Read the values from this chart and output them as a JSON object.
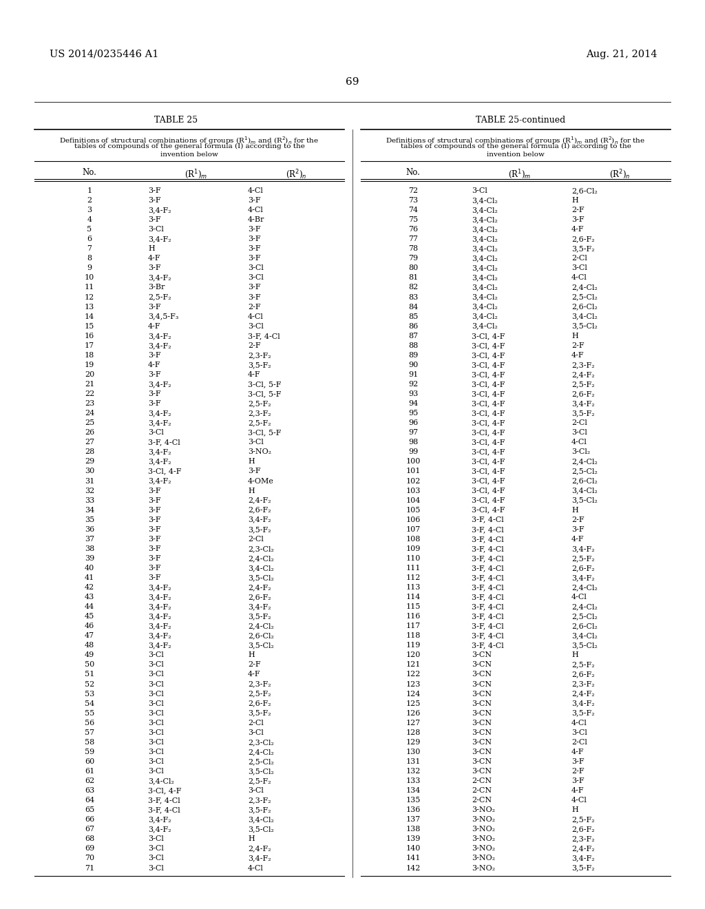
{
  "header_left": "US 2014/0235446 A1",
  "header_right": "Aug. 21, 2014",
  "page_number": "69",
  "table_title_left": "TABLE 25",
  "table_title_right": "TABLE 25-continued",
  "left_data": [
    [
      "1",
      "3-F",
      "4-Cl"
    ],
    [
      "2",
      "3-F",
      "3-F"
    ],
    [
      "3",
      "3,4-F₂",
      "4-Cl"
    ],
    [
      "4",
      "3-F",
      "4-Br"
    ],
    [
      "5",
      "3-Cl",
      "3-F"
    ],
    [
      "6",
      "3,4-F₂",
      "3-F"
    ],
    [
      "7",
      "H",
      "3-F"
    ],
    [
      "8",
      "4-F",
      "3-F"
    ],
    [
      "9",
      "3-F",
      "3-Cl"
    ],
    [
      "10",
      "3,4-F₂",
      "3-Cl"
    ],
    [
      "11",
      "3-Br",
      "3-F"
    ],
    [
      "12",
      "2,5-F₂",
      "3-F"
    ],
    [
      "13",
      "3-F",
      "2-F"
    ],
    [
      "14",
      "3,4,5-F₃",
      "4-Cl"
    ],
    [
      "15",
      "4-F",
      "3-Cl"
    ],
    [
      "16",
      "3,4-F₂",
      "3-F, 4-Cl"
    ],
    [
      "17",
      "3,4-F₂",
      "2-F"
    ],
    [
      "18",
      "3-F",
      "2,3-F₂"
    ],
    [
      "19",
      "4-F",
      "3,5-F₂"
    ],
    [
      "20",
      "3-F",
      "4-F"
    ],
    [
      "21",
      "3,4-F₂",
      "3-Cl, 5-F"
    ],
    [
      "22",
      "3-F",
      "3-Cl, 5-F"
    ],
    [
      "23",
      "3-F",
      "2,5-F₂"
    ],
    [
      "24",
      "3,4-F₂",
      "2,3-F₂"
    ],
    [
      "25",
      "3,4-F₂",
      "2,5-F₂"
    ],
    [
      "26",
      "3-Cl",
      "3-Cl, 5-F"
    ],
    [
      "27",
      "3-F, 4-Cl",
      "3-Cl"
    ],
    [
      "28",
      "3,4-F₂",
      "3-NO₂"
    ],
    [
      "29",
      "3,4-F₂",
      "H"
    ],
    [
      "30",
      "3-Cl, 4-F",
      "3-F"
    ],
    [
      "31",
      "3,4-F₂",
      "4-OMe"
    ],
    [
      "32",
      "3-F",
      "H"
    ],
    [
      "33",
      "3-F",
      "2,4-F₂"
    ],
    [
      "34",
      "3-F",
      "2,6-F₂"
    ],
    [
      "35",
      "3-F",
      "3,4-F₂"
    ],
    [
      "36",
      "3-F",
      "3,5-F₂"
    ],
    [
      "37",
      "3-F",
      "2-Cl"
    ],
    [
      "38",
      "3-F",
      "2,3-Cl₂"
    ],
    [
      "39",
      "3-F",
      "2,4-Cl₂"
    ],
    [
      "40",
      "3-F",
      "3,4-Cl₂"
    ],
    [
      "41",
      "3-F",
      "3,5-Cl₂"
    ],
    [
      "42",
      "3,4-F₂",
      "2,4-F₂"
    ],
    [
      "43",
      "3,4-F₂",
      "2,6-F₂"
    ],
    [
      "44",
      "3,4-F₂",
      "3,4-F₂"
    ],
    [
      "45",
      "3,4-F₂",
      "3,5-F₂"
    ],
    [
      "46",
      "3,4-F₂",
      "2,4-Cl₂"
    ],
    [
      "47",
      "3,4-F₂",
      "2,6-Cl₂"
    ],
    [
      "48",
      "3,4-F₂",
      "3,5-Cl₂"
    ],
    [
      "49",
      "3-Cl",
      "H"
    ],
    [
      "50",
      "3-Cl",
      "2-F"
    ],
    [
      "51",
      "3-Cl",
      "4-F"
    ],
    [
      "52",
      "3-Cl",
      "2,3-F₂"
    ],
    [
      "53",
      "3-Cl",
      "2,5-F₂"
    ],
    [
      "54",
      "3-Cl",
      "2,6-F₂"
    ],
    [
      "55",
      "3-Cl",
      "3,5-F₂"
    ],
    [
      "56",
      "3-Cl",
      "2-Cl"
    ],
    [
      "57",
      "3-Cl",
      "3-Cl"
    ],
    [
      "58",
      "3-Cl",
      "2,3-Cl₂"
    ],
    [
      "59",
      "3-Cl",
      "2,4-Cl₂"
    ],
    [
      "60",
      "3-Cl",
      "2,5-Cl₂"
    ],
    [
      "61",
      "3-Cl",
      "3,5-Cl₂"
    ],
    [
      "62",
      "3,4-Cl₂",
      "2,5-F₂"
    ],
    [
      "63",
      "3-Cl, 4-F",
      "3-Cl"
    ],
    [
      "64",
      "3-F, 4-Cl",
      "2,3-F₂"
    ],
    [
      "65",
      "3-F, 4-Cl",
      "3,5-F₂"
    ],
    [
      "66",
      "3,4-F₂",
      "3,4-Cl₂"
    ],
    [
      "67",
      "3,4-F₂",
      "3,5-Cl₂"
    ],
    [
      "68",
      "3-Cl",
      "H"
    ],
    [
      "69",
      "3-Cl",
      "2,4-F₂"
    ],
    [
      "70",
      "3-Cl",
      "3,4-F₂"
    ],
    [
      "71",
      "3-Cl",
      "4-Cl"
    ]
  ],
  "right_data": [
    [
      "72",
      "3-Cl",
      "2,6-Cl₂"
    ],
    [
      "73",
      "3,4-Cl₂",
      "H"
    ],
    [
      "74",
      "3,4-Cl₂",
      "2-F"
    ],
    [
      "75",
      "3,4-Cl₂",
      "3-F"
    ],
    [
      "76",
      "3,4-Cl₂",
      "4-F"
    ],
    [
      "77",
      "3,4-Cl₂",
      "2,6-F₂"
    ],
    [
      "78",
      "3,4-Cl₂",
      "3,5-F₂"
    ],
    [
      "79",
      "3,4-Cl₂",
      "2-Cl"
    ],
    [
      "80",
      "3,4-Cl₂",
      "3-Cl"
    ],
    [
      "81",
      "3,4-Cl₂",
      "4-Cl"
    ],
    [
      "82",
      "3,4-Cl₂",
      "2,4-Cl₂"
    ],
    [
      "83",
      "3,4-Cl₂",
      "2,5-Cl₂"
    ],
    [
      "84",
      "3,4-Cl₂",
      "2,6-Cl₂"
    ],
    [
      "85",
      "3,4-Cl₂",
      "3,4-Cl₂"
    ],
    [
      "86",
      "3,4-Cl₂",
      "3,5-Cl₂"
    ],
    [
      "87",
      "3-Cl, 4-F",
      "H"
    ],
    [
      "88",
      "3-Cl, 4-F",
      "2-F"
    ],
    [
      "89",
      "3-Cl, 4-F",
      "4-F"
    ],
    [
      "90",
      "3-Cl, 4-F",
      "2,3-F₂"
    ],
    [
      "91",
      "3-Cl, 4-F",
      "2,4-F₂"
    ],
    [
      "92",
      "3-Cl, 4-F",
      "2,5-F₂"
    ],
    [
      "93",
      "3-Cl, 4-F",
      "2,6-F₂"
    ],
    [
      "94",
      "3-Cl, 4-F",
      "3,4-F₂"
    ],
    [
      "95",
      "3-Cl, 4-F",
      "3,5-F₂"
    ],
    [
      "96",
      "3-Cl, 4-F",
      "2-Cl"
    ],
    [
      "97",
      "3-Cl, 4-F",
      "3-Cl"
    ],
    [
      "98",
      "3-Cl, 4-F",
      "4-Cl"
    ],
    [
      "99",
      "3-Cl, 4-F",
      "3-Cl₂"
    ],
    [
      "100",
      "3-Cl, 4-F",
      "2,4-Cl₂"
    ],
    [
      "101",
      "3-Cl, 4-F",
      "2,5-Cl₂"
    ],
    [
      "102",
      "3-Cl, 4-F",
      "2,6-Cl₂"
    ],
    [
      "103",
      "3-Cl, 4-F",
      "3,4-Cl₂"
    ],
    [
      "104",
      "3-Cl, 4-F",
      "3,5-Cl₂"
    ],
    [
      "105",
      "3-Cl, 4-F",
      "H"
    ],
    [
      "106",
      "3-F, 4-Cl",
      "2-F"
    ],
    [
      "107",
      "3-F, 4-Cl",
      "3-F"
    ],
    [
      "108",
      "3-F, 4-Cl",
      "4-F"
    ],
    [
      "109",
      "3-F, 4-Cl",
      "3,4-F₂"
    ],
    [
      "110",
      "3-F, 4-Cl",
      "2,5-F₂"
    ],
    [
      "111",
      "3-F, 4-Cl",
      "2,6-F₂"
    ],
    [
      "112",
      "3-F, 4-Cl",
      "3,4-F₂"
    ],
    [
      "113",
      "3-F, 4-Cl",
      "2,4-Cl₂"
    ],
    [
      "114",
      "3-F, 4-Cl",
      "4-Cl"
    ],
    [
      "115",
      "3-F, 4-Cl",
      "2,4-Cl₂"
    ],
    [
      "116",
      "3-F, 4-Cl",
      "2,5-Cl₂"
    ],
    [
      "117",
      "3-F, 4-Cl",
      "2,6-Cl₂"
    ],
    [
      "118",
      "3-F, 4-Cl",
      "3,4-Cl₂"
    ],
    [
      "119",
      "3-F, 4-Cl",
      "3,5-Cl₂"
    ],
    [
      "120",
      "3-CN",
      "H"
    ],
    [
      "121",
      "3-CN",
      "2,5-F₂"
    ],
    [
      "122",
      "3-CN",
      "2,6-F₂"
    ],
    [
      "123",
      "3-CN",
      "2,3-F₂"
    ],
    [
      "124",
      "3-CN",
      "2,4-F₂"
    ],
    [
      "125",
      "3-CN",
      "3,4-F₂"
    ],
    [
      "126",
      "3-CN",
      "3,5-F₂"
    ],
    [
      "127",
      "3-CN",
      "4-Cl"
    ],
    [
      "128",
      "3-CN",
      "3-Cl"
    ],
    [
      "129",
      "3-CN",
      "2-Cl"
    ],
    [
      "130",
      "3-CN",
      "4-F"
    ],
    [
      "131",
      "3-CN",
      "3-F"
    ],
    [
      "132",
      "3-CN",
      "2-F"
    ],
    [
      "133",
      "2-CN",
      "3-F"
    ],
    [
      "134",
      "2-CN",
      "4-F"
    ],
    [
      "135",
      "2-CN",
      "4-Cl"
    ],
    [
      "136",
      "3-NO₂",
      "H"
    ],
    [
      "137",
      "3-NO₂",
      "2,5-F₂"
    ],
    [
      "138",
      "3-NO₂",
      "2,6-F₂"
    ],
    [
      "139",
      "3-NO₂",
      "2,3-F₂"
    ],
    [
      "140",
      "3-NO₂",
      "2,4-F₂"
    ],
    [
      "141",
      "3-NO₂",
      "3,4-F₂"
    ],
    [
      "142",
      "3-NO₂",
      "3,5-F₂"
    ]
  ]
}
